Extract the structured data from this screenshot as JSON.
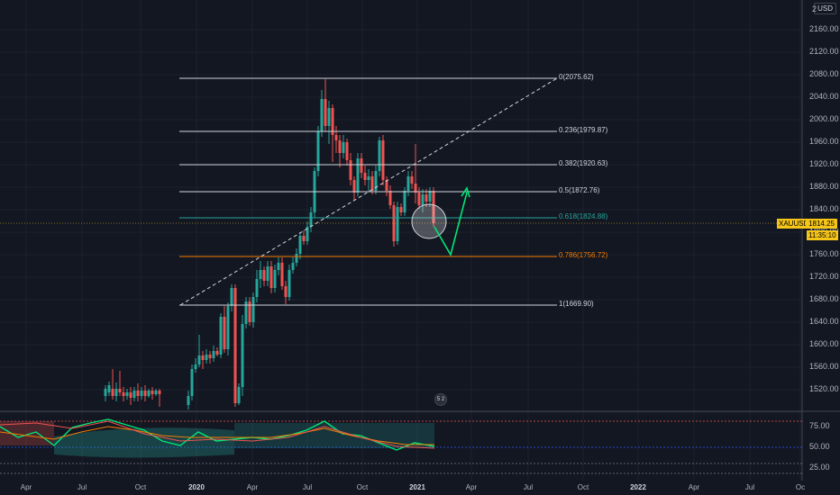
{
  "currency_button": "USD",
  "symbol": "XAUUSD",
  "last_price": "1814.25",
  "countdown": "11:35:10",
  "corner_label": "2",
  "price_axis": [
    "2160.00",
    "2120.00",
    "2080.00",
    "2040.00",
    "2000.00",
    "1960.00",
    "1920.00",
    "1880.00",
    "1840.00",
    "1800.00",
    "1760.00",
    "1720.00",
    "1680.00",
    "1640.00",
    "1600.00",
    "1560.00",
    "1520.00"
  ],
  "rsi_axis": [
    "75.00",
    "50.00",
    "25.00"
  ],
  "time_axis": [
    "Apr",
    "Jul",
    "Oct",
    "2020",
    "Apr",
    "Jul",
    "Oct",
    "2021",
    "Apr",
    "Jul",
    "Oct",
    "2022",
    "Apr",
    "Jul",
    "Oc"
  ],
  "fib_levels": [
    {
      "label": "0(2075.62)",
      "color": "#d1d4dc"
    },
    {
      "label": "0.236(1979.87)",
      "color": "#d1d4dc"
    },
    {
      "label": "0.382(1920.63)",
      "color": "#d1d4dc"
    },
    {
      "label": "0.5(1872.76)",
      "color": "#d1d4dc"
    },
    {
      "label": "0.618(1824.88)",
      "color": "#26a69a"
    },
    {
      "label": "0.786(1756.72)",
      "color": "#f57c00"
    },
    {
      "label": "1(1669.90)",
      "color": "#d1d4dc"
    }
  ],
  "event_badge": "5 2",
  "colors": {
    "up": "#26a69a",
    "down": "#ef5350",
    "background": "#131722",
    "grid": "#1e222d",
    "accent": "#f5c518",
    "arrow": "#00e676"
  }
}
